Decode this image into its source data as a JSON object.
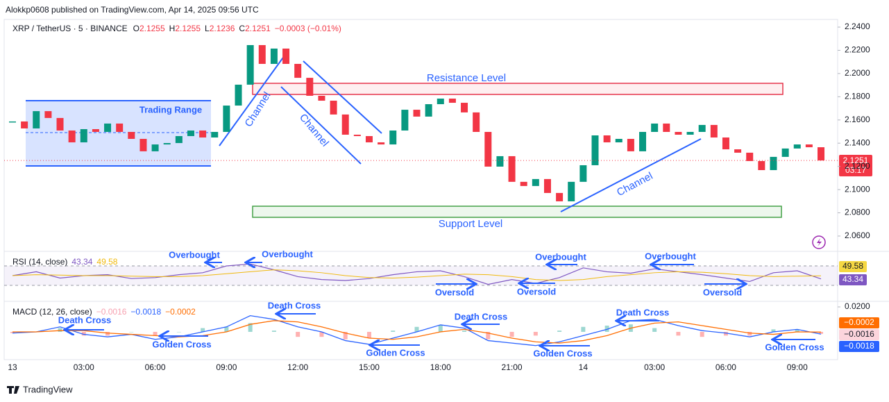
{
  "header": {
    "published": "Alokkp0608 published on TradingView.com, Apr 14, 2025 09:56 UTC",
    "brand": "TradingView"
  },
  "chart_data": [
    {
      "type": "candlestick",
      "title": "XRP / TetherUS · 5 · BINANCE",
      "ohlc_labels": [
        "O",
        "H",
        "L",
        "C"
      ],
      "ohlc": [
        2.1255,
        2.1255,
        2.1236,
        2.1251
      ],
      "change": "−0.0003 (−0.01%)",
      "countdown": "03:17",
      "up_color": "#089981",
      "down_color": "#f23645",
      "x": [
        0,
        0.5,
        1,
        1.5,
        2,
        2.5,
        3,
        3.5,
        4,
        4.5,
        5,
        5.5,
        6,
        6.5,
        7,
        7.5,
        8,
        8.5,
        9,
        9.5,
        10,
        10.5,
        11,
        11.5,
        12,
        12.5,
        13,
        13.5,
        14,
        14.5,
        15,
        15.5,
        16,
        16.5,
        17,
        17.5,
        18,
        18.5,
        19,
        19.5,
        20,
        20.5,
        21,
        21.5,
        22,
        22.5,
        23,
        23.5,
        24,
        24.5,
        25,
        25.5,
        26,
        26.5,
        27,
        27.5,
        28,
        28.5,
        29,
        29.5,
        30,
        30.5,
        31,
        31.5,
        32,
        32.5,
        33,
        33.5,
        34
      ],
      "values": [
        2.1587,
        2.1527,
        2.1676,
        2.1617,
        2.1509,
        2.1407,
        2.1521,
        2.1497,
        2.1569,
        2.1497,
        2.1437,
        2.133,
        2.1389,
        2.1401,
        2.1461,
        2.1509,
        2.1449,
        2.1497,
        2.1724,
        2.1904,
        2.2245,
        2.2083,
        2.2215,
        2.2083,
        2.1963,
        2.1808,
        2.1766,
        2.1647,
        2.1473,
        2.1461,
        2.1407,
        2.1389,
        2.1509,
        2.1688,
        2.1629,
        2.1736,
        2.1784,
        2.1748,
        2.1665,
        2.1497,
        2.1198,
        2.1288,
        2.1067,
        2.1031,
        2.1091,
        2.0971,
        2.0899,
        2.1067,
        2.121,
        2.1467,
        2.1407,
        2.1437,
        2.133,
        2.1497,
        2.1569,
        2.1497,
        2.1473,
        2.1497,
        2.1557,
        2.1449,
        2.1347,
        2.1318,
        2.1246,
        2.1168,
        2.1282,
        2.1354,
        2.1389,
        2.1365,
        2.1251
      ],
      "xlim": [
        -0.35,
        34.7
      ],
      "xticks": [
        {
          "value": 0,
          "label": "13"
        },
        {
          "value": 3,
          "label": "03:00"
        },
        {
          "value": 6,
          "label": "06:00"
        },
        {
          "value": 9,
          "label": "09:00"
        },
        {
          "value": 12,
          "label": "12:00"
        },
        {
          "value": 15,
          "label": "15:00"
        },
        {
          "value": 18,
          "label": "18:00"
        },
        {
          "value": 21,
          "label": "21:00"
        },
        {
          "value": 24,
          "label": "14"
        },
        {
          "value": 27,
          "label": "03:00"
        },
        {
          "value": 30,
          "label": "06:00"
        },
        {
          "value": 33,
          "label": "09:00"
        }
      ],
      "ylim": [
        2.051,
        2.2454
      ],
      "yticks": [
        {
          "value": 2.24,
          "label": "2.2400"
        },
        {
          "value": 2.22,
          "label": "2.2200"
        },
        {
          "value": 2.2,
          "label": "2.2000"
        },
        {
          "value": 2.18,
          "label": "2.1800"
        },
        {
          "value": 2.16,
          "label": "2.1600"
        },
        {
          "value": 2.14,
          "label": "2.1400"
        },
        {
          "value": 2.12,
          "label": "2.1200"
        },
        {
          "value": 2.1,
          "label": "2.1000"
        },
        {
          "value": 2.08,
          "label": "2.0800"
        },
        {
          "value": 2.06,
          "label": "2.0600"
        }
      ],
      "annotations": {
        "trading_range": "Trading Range",
        "resistance": "Resistance Level",
        "support": "Support Level",
        "channel": "Channel"
      }
    },
    {
      "type": "line",
      "title": "RSI (14, close)",
      "x": [
        0,
        1,
        2,
        3,
        4,
        5,
        6,
        7,
        8,
        9,
        10,
        11,
        12,
        13,
        14,
        15,
        16,
        17,
        18,
        19,
        20,
        21,
        22,
        23,
        24,
        25,
        26,
        27,
        28,
        29,
        30,
        31,
        32,
        33,
        34
      ],
      "series": [
        {
          "color": "#7e57c2",
          "values": [
            50,
            58,
            45,
            50,
            52,
            44,
            46,
            52,
            56,
            70,
            74,
            62,
            48,
            42,
            40,
            44,
            52,
            58,
            60,
            48,
            32,
            42,
            34,
            46,
            66,
            58,
            55,
            64,
            58,
            52,
            45,
            38,
            56,
            60,
            43.34
          ]
        },
        {
          "color": "#f0b90b",
          "values": [
            50,
            52,
            51,
            50,
            50,
            49,
            48,
            48,
            50,
            54,
            58,
            62,
            60,
            56,
            50,
            46,
            45,
            47,
            50,
            53,
            52,
            48,
            42,
            40,
            42,
            48,
            52,
            56,
            58,
            57,
            54,
            50,
            48,
            49,
            49.58
          ]
        }
      ],
      "ylim": [
        0,
        88.6
      ],
      "bands": [
        30,
        70
      ],
      "annotations": {
        "overbought": "Overbought",
        "oversold": "Oversold"
      }
    },
    {
      "type": "macd",
      "title": "MACD (12, 26, close)",
      "x": [
        0,
        1,
        2,
        3,
        4,
        5,
        6,
        7,
        8,
        9,
        10,
        11,
        12,
        13,
        14,
        15,
        16,
        17,
        18,
        19,
        20,
        21,
        22,
        23,
        24,
        25,
        26,
        27,
        28,
        29,
        30,
        31,
        32,
        33,
        34
      ],
      "series": [
        {
          "color": "#26a69a",
          "negative_color": "#ff5252",
          "values": [
            -0.001,
            0,
            0.003,
            -0.003,
            -0.003,
            0,
            -0.003,
            0,
            0.003,
            0.004,
            0.007,
            0.001,
            -0.004,
            -0.004,
            -0.006,
            -0.005,
            0.001,
            0.004,
            0.0056,
            0.001,
            -0.006,
            -0.004,
            -0.003,
            0.001,
            0.004,
            0.005,
            0.006,
            0.003,
            -0.003,
            -0.004,
            -0.003,
            -0.003,
            0.002,
            0.002,
            -0.0016
          ]
        },
        {
          "color": "#2962ff",
          "values": [
            -0.001,
            0,
            0.004,
            -0.002,
            -0.004,
            -0.002,
            -0.006,
            -0.004,
            0,
            0.004,
            0.013,
            0.01,
            0.004,
            0,
            -0.007,
            -0.01,
            -0.005,
            0,
            0.0056,
            0.003,
            -0.007,
            -0.009,
            -0.011,
            -0.008,
            -0.003,
            0.002,
            0.009,
            0.01,
            0.005,
            0.001,
            -0.001,
            -0.004,
            0,
            0.002,
            -0.0018
          ]
        },
        {
          "color": "#ff6d00",
          "values": [
            0,
            0,
            0.001,
            0.001,
            -0.001,
            -0.002,
            -0.003,
            -0.004,
            -0.003,
            0,
            0.006,
            0.009,
            0.008,
            0.004,
            -0.001,
            -0.005,
            -0.006,
            -0.004,
            0,
            0.002,
            -0.001,
            -0.005,
            -0.008,
            -0.009,
            -0.007,
            -0.003,
            0.003,
            0.007,
            0.008,
            0.005,
            0.002,
            -0.001,
            -0.002,
            0,
            -0.0002
          ]
        }
      ],
      "legend_values": [
        "−0.0016",
        "−0.0018",
        "−0.0002"
      ],
      "ylim": [
        -0.0206,
        0.0228
      ],
      "yticks": [
        {
          "value": 0.02,
          "label": "0.0200"
        }
      ],
      "annotations": {
        "death_cross": "Death  Cross",
        "golden_cross": "Golden Cross"
      }
    }
  ]
}
